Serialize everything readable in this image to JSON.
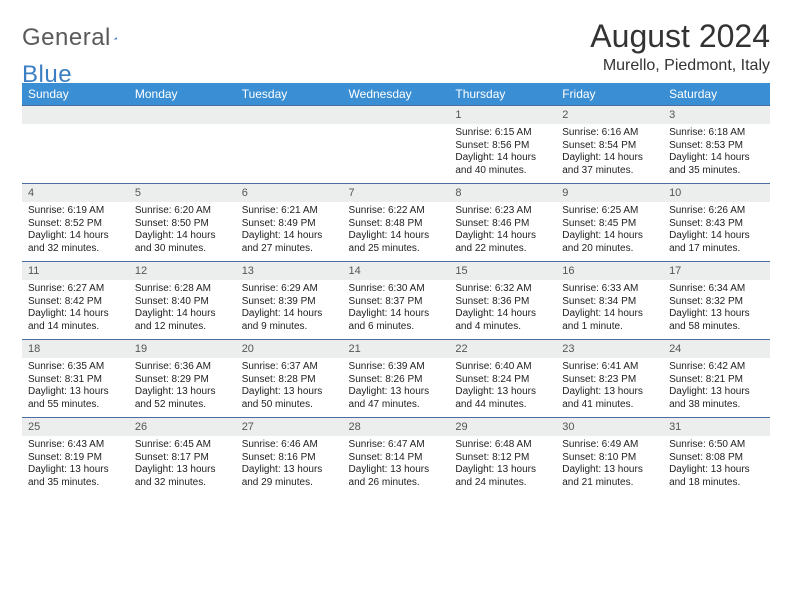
{
  "logo": {
    "text1": "General",
    "text2": "Blue"
  },
  "header": {
    "month_title": "August 2024",
    "location": "Murello, Piedmont, Italy"
  },
  "colors": {
    "header_bg": "#3a8fd4",
    "header_fg": "#ffffff",
    "daynum_bg": "#eceded",
    "daynum_border": "#4a6fa0",
    "logo_blue": "#3a7fc4"
  },
  "day_names": [
    "Sunday",
    "Monday",
    "Tuesday",
    "Wednesday",
    "Thursday",
    "Friday",
    "Saturday"
  ],
  "weeks": [
    [
      {
        "n": "",
        "sr": "",
        "ss": "",
        "d1": "",
        "d2": ""
      },
      {
        "n": "",
        "sr": "",
        "ss": "",
        "d1": "",
        "d2": ""
      },
      {
        "n": "",
        "sr": "",
        "ss": "",
        "d1": "",
        "d2": ""
      },
      {
        "n": "",
        "sr": "",
        "ss": "",
        "d1": "",
        "d2": ""
      },
      {
        "n": "1",
        "sr": "Sunrise: 6:15 AM",
        "ss": "Sunset: 8:56 PM",
        "d1": "Daylight: 14 hours",
        "d2": "and 40 minutes."
      },
      {
        "n": "2",
        "sr": "Sunrise: 6:16 AM",
        "ss": "Sunset: 8:54 PM",
        "d1": "Daylight: 14 hours",
        "d2": "and 37 minutes."
      },
      {
        "n": "3",
        "sr": "Sunrise: 6:18 AM",
        "ss": "Sunset: 8:53 PM",
        "d1": "Daylight: 14 hours",
        "d2": "and 35 minutes."
      }
    ],
    [
      {
        "n": "4",
        "sr": "Sunrise: 6:19 AM",
        "ss": "Sunset: 8:52 PM",
        "d1": "Daylight: 14 hours",
        "d2": "and 32 minutes."
      },
      {
        "n": "5",
        "sr": "Sunrise: 6:20 AM",
        "ss": "Sunset: 8:50 PM",
        "d1": "Daylight: 14 hours",
        "d2": "and 30 minutes."
      },
      {
        "n": "6",
        "sr": "Sunrise: 6:21 AM",
        "ss": "Sunset: 8:49 PM",
        "d1": "Daylight: 14 hours",
        "d2": "and 27 minutes."
      },
      {
        "n": "7",
        "sr": "Sunrise: 6:22 AM",
        "ss": "Sunset: 8:48 PM",
        "d1": "Daylight: 14 hours",
        "d2": "and 25 minutes."
      },
      {
        "n": "8",
        "sr": "Sunrise: 6:23 AM",
        "ss": "Sunset: 8:46 PM",
        "d1": "Daylight: 14 hours",
        "d2": "and 22 minutes."
      },
      {
        "n": "9",
        "sr": "Sunrise: 6:25 AM",
        "ss": "Sunset: 8:45 PM",
        "d1": "Daylight: 14 hours",
        "d2": "and 20 minutes."
      },
      {
        "n": "10",
        "sr": "Sunrise: 6:26 AM",
        "ss": "Sunset: 8:43 PM",
        "d1": "Daylight: 14 hours",
        "d2": "and 17 minutes."
      }
    ],
    [
      {
        "n": "11",
        "sr": "Sunrise: 6:27 AM",
        "ss": "Sunset: 8:42 PM",
        "d1": "Daylight: 14 hours",
        "d2": "and 14 minutes."
      },
      {
        "n": "12",
        "sr": "Sunrise: 6:28 AM",
        "ss": "Sunset: 8:40 PM",
        "d1": "Daylight: 14 hours",
        "d2": "and 12 minutes."
      },
      {
        "n": "13",
        "sr": "Sunrise: 6:29 AM",
        "ss": "Sunset: 8:39 PM",
        "d1": "Daylight: 14 hours",
        "d2": "and 9 minutes."
      },
      {
        "n": "14",
        "sr": "Sunrise: 6:30 AM",
        "ss": "Sunset: 8:37 PM",
        "d1": "Daylight: 14 hours",
        "d2": "and 6 minutes."
      },
      {
        "n": "15",
        "sr": "Sunrise: 6:32 AM",
        "ss": "Sunset: 8:36 PM",
        "d1": "Daylight: 14 hours",
        "d2": "and 4 minutes."
      },
      {
        "n": "16",
        "sr": "Sunrise: 6:33 AM",
        "ss": "Sunset: 8:34 PM",
        "d1": "Daylight: 14 hours",
        "d2": "and 1 minute."
      },
      {
        "n": "17",
        "sr": "Sunrise: 6:34 AM",
        "ss": "Sunset: 8:32 PM",
        "d1": "Daylight: 13 hours",
        "d2": "and 58 minutes."
      }
    ],
    [
      {
        "n": "18",
        "sr": "Sunrise: 6:35 AM",
        "ss": "Sunset: 8:31 PM",
        "d1": "Daylight: 13 hours",
        "d2": "and 55 minutes."
      },
      {
        "n": "19",
        "sr": "Sunrise: 6:36 AM",
        "ss": "Sunset: 8:29 PM",
        "d1": "Daylight: 13 hours",
        "d2": "and 52 minutes."
      },
      {
        "n": "20",
        "sr": "Sunrise: 6:37 AM",
        "ss": "Sunset: 8:28 PM",
        "d1": "Daylight: 13 hours",
        "d2": "and 50 minutes."
      },
      {
        "n": "21",
        "sr": "Sunrise: 6:39 AM",
        "ss": "Sunset: 8:26 PM",
        "d1": "Daylight: 13 hours",
        "d2": "and 47 minutes."
      },
      {
        "n": "22",
        "sr": "Sunrise: 6:40 AM",
        "ss": "Sunset: 8:24 PM",
        "d1": "Daylight: 13 hours",
        "d2": "and 44 minutes."
      },
      {
        "n": "23",
        "sr": "Sunrise: 6:41 AM",
        "ss": "Sunset: 8:23 PM",
        "d1": "Daylight: 13 hours",
        "d2": "and 41 minutes."
      },
      {
        "n": "24",
        "sr": "Sunrise: 6:42 AM",
        "ss": "Sunset: 8:21 PM",
        "d1": "Daylight: 13 hours",
        "d2": "and 38 minutes."
      }
    ],
    [
      {
        "n": "25",
        "sr": "Sunrise: 6:43 AM",
        "ss": "Sunset: 8:19 PM",
        "d1": "Daylight: 13 hours",
        "d2": "and 35 minutes."
      },
      {
        "n": "26",
        "sr": "Sunrise: 6:45 AM",
        "ss": "Sunset: 8:17 PM",
        "d1": "Daylight: 13 hours",
        "d2": "and 32 minutes."
      },
      {
        "n": "27",
        "sr": "Sunrise: 6:46 AM",
        "ss": "Sunset: 8:16 PM",
        "d1": "Daylight: 13 hours",
        "d2": "and 29 minutes."
      },
      {
        "n": "28",
        "sr": "Sunrise: 6:47 AM",
        "ss": "Sunset: 8:14 PM",
        "d1": "Daylight: 13 hours",
        "d2": "and 26 minutes."
      },
      {
        "n": "29",
        "sr": "Sunrise: 6:48 AM",
        "ss": "Sunset: 8:12 PM",
        "d1": "Daylight: 13 hours",
        "d2": "and 24 minutes."
      },
      {
        "n": "30",
        "sr": "Sunrise: 6:49 AM",
        "ss": "Sunset: 8:10 PM",
        "d1": "Daylight: 13 hours",
        "d2": "and 21 minutes."
      },
      {
        "n": "31",
        "sr": "Sunrise: 6:50 AM",
        "ss": "Sunset: 8:08 PM",
        "d1": "Daylight: 13 hours",
        "d2": "and 18 minutes."
      }
    ]
  ]
}
